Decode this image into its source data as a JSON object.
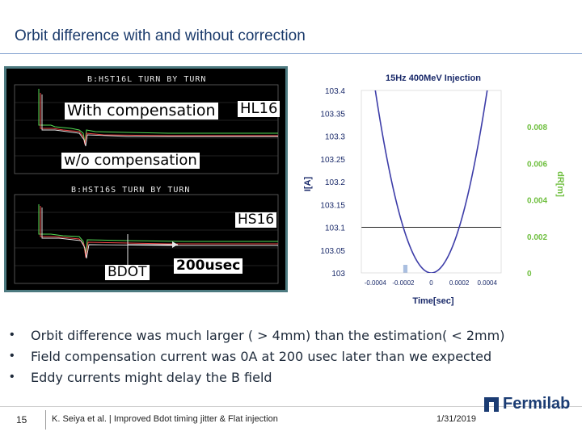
{
  "slide": {
    "title": "Orbit difference with and without correction",
    "bullets": [
      "Orbit difference was much larger ( > 4mm) than the estimation( < 2mm)",
      "Field compensation current was 0A at 200 usec later than we expected",
      "Eddy currents might delay the B field"
    ],
    "footer": {
      "page_number": "15",
      "citation": "K. Seiya et al. | Improved Bdot timing jitter & Flat injection",
      "date": "1/31/2019",
      "logo_text": "Fermilab"
    }
  },
  "scope": {
    "header_top": "B:HST16L TURN BY TURN",
    "header_bottom": "B:HST16S TURN BY TURN",
    "overlays": {
      "with_comp": "With compensation",
      "hl16": "HL16",
      "without_comp": "w/o compensation",
      "hs16": "HS16",
      "bdot": "BDOT",
      "delay": "200usec"
    }
  },
  "chart_data": {
    "type": "line",
    "title": "15Hz 400MeV Injection",
    "xlabel": "Time[sec]",
    "ylabel": "I[A]",
    "y2label": "dR[m]",
    "x_ticks": [
      "-0.0004",
      "-0.0002",
      "0",
      "0.0002",
      "0.0004"
    ],
    "y_ticks": [
      "103",
      "103.05",
      "103.1",
      "103.15",
      "103.2",
      "103.25",
      "103.3",
      "103.35",
      "103.4"
    ],
    "y2_ticks": [
      "0",
      "0.002",
      "0.004",
      "0.006",
      "0.008"
    ],
    "xlim": [
      -0.0005,
      0.0005
    ],
    "ylim": [
      103,
      103.4
    ],
    "y2lim": [
      0,
      0.01
    ],
    "series": [
      {
        "color": "#3d3da8",
        "x": [
          -0.0005,
          -0.0004,
          -0.0003,
          -0.0002,
          -0.0001,
          0,
          0.0001,
          0.0002,
          0.0003,
          0.0004,
          0.0005
        ],
        "y": [
          103.62,
          103.4,
          103.225,
          103.1,
          103.025,
          103,
          103.025,
          103.1,
          103.225,
          103.4,
          103.62
        ]
      }
    ],
    "reference_line": {
      "y": 103.1,
      "color": "#222222"
    },
    "highlight": {
      "x_start": -0.0002,
      "x_end": -0.00017,
      "color": "#aabfe0"
    },
    "colors": {
      "axis_text": "#1a2a6a",
      "y2_text": "#6fbf3f"
    }
  }
}
